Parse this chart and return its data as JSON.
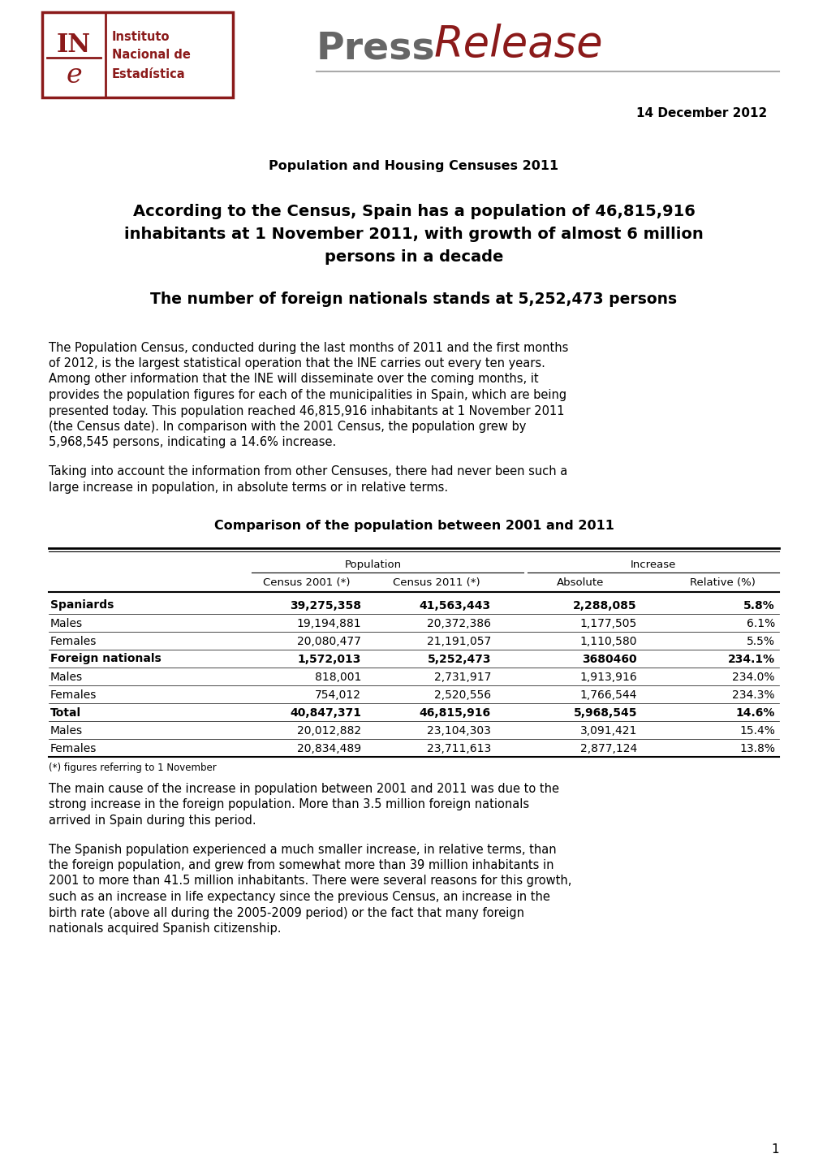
{
  "page_title": "Population and Housing Censuses 2011",
  "date": "14 December 2012",
  "main_heading_line1": "According to the Census, Spain has a population of 46,815,916",
  "main_heading_line2": "inhabitants at 1 November 2011, with growth of almost 6 million",
  "main_heading_line3": "persons in a decade",
  "sub_heading": "The number of foreign nationals stands at 5,252,473 persons",
  "intro_para1_lines": [
    "The Population Census, conducted during the last months of 2011 and the first months",
    "of 2012, is the largest statistical operation that the INE carries out every ten years.",
    "Among other information that the INE will disseminate over the coming months, it",
    "provides the population figures for each of the municipalities in Spain, which are being",
    "presented today. This population reached 46,815,916 inhabitants at 1 November 2011",
    "(the Census date). In comparison with the 2001 Census, the population grew by",
    "5,968,545 persons, indicating a 14.6% increase."
  ],
  "intro_para2_lines": [
    "Taking into account the information from other Censuses, there had never been such a",
    "large increase in population, in absolute terms or in relative terms."
  ],
  "table_title": "Comparison of the population between 2001 and 2011",
  "table_sub_headers": [
    "",
    "Census 2001 (*)",
    "Census 2011 (*)",
    "Absolute",
    "Relative (%)"
  ],
  "table_rows": [
    [
      "Spaniards",
      "39,275,358",
      "41,563,443",
      "2,288,085",
      "5.8%"
    ],
    [
      "Males",
      "19,194,881",
      "20,372,386",
      "1,177,505",
      "6.1%"
    ],
    [
      "Females",
      "20,080,477",
      "21,191,057",
      "1,110,580",
      "5.5%"
    ],
    [
      "Foreign nationals",
      "1,572,013",
      "5,252,473",
      "3680460",
      "234.1%"
    ],
    [
      "Males",
      "818,001",
      "2,731,917",
      "1,913,916",
      "234.0%"
    ],
    [
      "Females",
      "754,012",
      "2,520,556",
      "1,766,544",
      "234.3%"
    ],
    [
      "Total",
      "40,847,371",
      "46,815,916",
      "5,968,545",
      "14.6%"
    ],
    [
      "Males",
      "20,012,882",
      "23,104,303",
      "3,091,421",
      "15.4%"
    ],
    [
      "Females",
      "20,834,489",
      "23,711,613",
      "2,877,124",
      "13.8%"
    ]
  ],
  "bold_rows": [
    0,
    3,
    6
  ],
  "table_note": "(*) figures referring to 1 November",
  "para3_lines": [
    "The main cause of the increase in population between 2001 and 2011 was due to the",
    "strong increase in the foreign population. More than 3.5 million foreign nationals",
    "arrived in Spain during this period."
  ],
  "para4_lines": [
    "The Spanish population experienced a much smaller increase, in relative terms, than",
    "the foreign population, and grew from somewhat more than 39 million inhabitants in",
    "2001 to more than 41.5 million inhabitants. There were several reasons for this growth,",
    "such as an increase in life expectancy since the previous Census, an increase in the",
    "birth rate (above all during the 2005-2009 period) or the fact that many foreign",
    "nationals acquired Spanish citizenship."
  ],
  "page_number": "1",
  "background_color": "#ffffff",
  "text_color": "#000000",
  "crimson": "#8b1a1a",
  "gray_press": "#666666"
}
